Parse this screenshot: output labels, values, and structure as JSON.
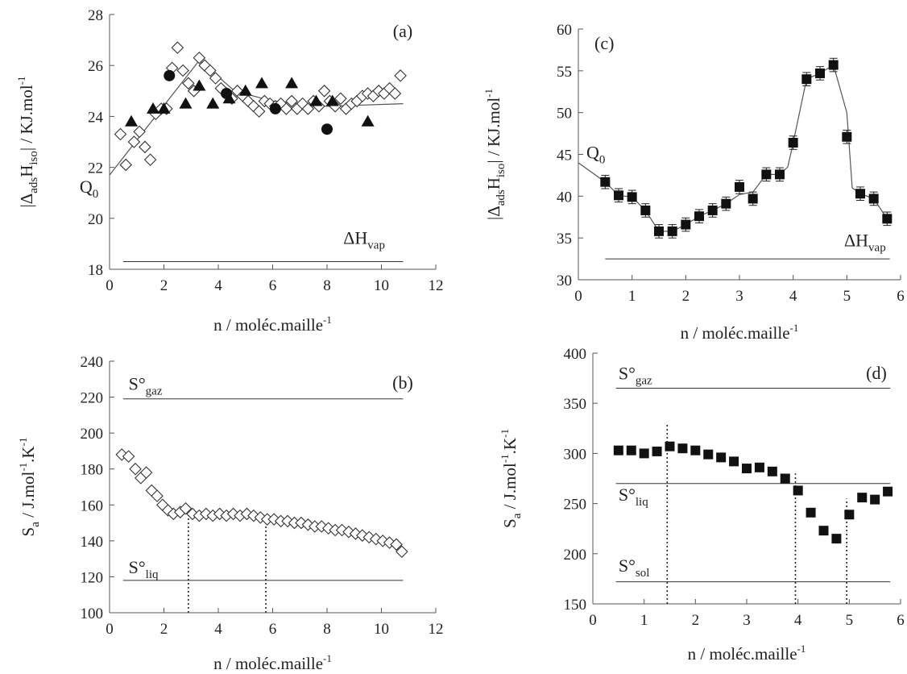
{
  "chart_data": [
    {
      "id": "a",
      "type": "scatter",
      "panel_label": "(a)",
      "xlabel": "n / moléc.maille",
      "xlabel_sup": "-1",
      "ylabel_parts": [
        "|Δ",
        "ads",
        "H",
        "iso",
        "| / KJ.mol",
        "-1"
      ],
      "xlim": [
        0,
        12
      ],
      "ylim": [
        18,
        28
      ],
      "xticks": [
        0,
        2,
        4,
        6,
        8,
        10,
        12
      ],
      "yticks": [
        18,
        20,
        22,
        24,
        26,
        28
      ],
      "annotations": [
        {
          "text": "Q",
          "sub": "0",
          "x": -1.1,
          "y": 21.0
        },
        {
          "text": "ΔH",
          "sub": "vap",
          "x": 8.6,
          "y": 19.0
        }
      ],
      "hlines": [
        {
          "y": 18.3,
          "x0": 0.5,
          "x1": 10.8
        }
      ],
      "vlines": [],
      "series": [
        {
          "marker": "diamond-open",
          "x": [
            0.4,
            0.6,
            0.9,
            1.1,
            1.3,
            1.5,
            1.7,
            1.9,
            2.1,
            2.3,
            2.5,
            2.7,
            2.9,
            3.1,
            3.3,
            3.5,
            3.7,
            3.9,
            4.1,
            4.3,
            4.5,
            4.7,
            4.9,
            5.1,
            5.3,
            5.5,
            5.7,
            5.9,
            6.1,
            6.3,
            6.5,
            6.7,
            6.9,
            7.1,
            7.3,
            7.5,
            7.7,
            7.9,
            8.1,
            8.3,
            8.5,
            8.7,
            8.9,
            9.1,
            9.3,
            9.5,
            9.7,
            9.9,
            10.1,
            10.3,
            10.5,
            10.7
          ],
          "y": [
            23.3,
            22.1,
            23.0,
            23.4,
            22.8,
            22.3,
            24.1,
            24.3,
            24.3,
            25.9,
            26.7,
            25.8,
            25.3,
            25.0,
            26.3,
            26.0,
            25.8,
            25.5,
            25.1,
            24.9,
            24.7,
            25.0,
            24.8,
            24.6,
            24.4,
            24.2,
            24.6,
            24.5,
            24.4,
            24.5,
            24.3,
            24.6,
            24.3,
            24.5,
            24.3,
            24.6,
            24.4,
            25.0,
            24.6,
            24.4,
            24.7,
            24.3,
            24.5,
            24.6,
            24.8,
            24.9,
            24.8,
            25.0,
            24.9,
            25.1,
            24.9,
            25.6
          ]
        },
        {
          "marker": "circle-filled",
          "x": [
            2.2,
            4.3,
            6.1,
            8.0
          ],
          "y": [
            25.6,
            24.9,
            24.3,
            23.5
          ]
        },
        {
          "marker": "triangle-filled",
          "x": [
            0.8,
            1.6,
            2.0,
            2.8,
            3.3,
            3.8,
            4.4,
            5.0,
            5.6,
            6.7,
            7.6,
            8.2,
            9.5
          ],
          "y": [
            23.8,
            24.3,
            24.3,
            24.5,
            25.2,
            24.5,
            24.7,
            25.0,
            25.3,
            25.3,
            24.6,
            24.6,
            23.8
          ]
        }
      ],
      "fit_lines": [
        {
          "x": [
            0,
            3.3,
            4.6,
            6.0,
            8.0,
            10.8
          ],
          "y": [
            21.7,
            26.2,
            25.0,
            24.6,
            24.4,
            24.5
          ]
        }
      ]
    },
    {
      "id": "b",
      "type": "scatter",
      "panel_label": "(b)",
      "xlabel": "n / moléc.maille",
      "xlabel_sup": "-1",
      "ylabel_parts": [
        "S",
        "a",
        " / J.mol",
        "-1",
        ".K",
        "-1"
      ],
      "xlim": [
        0,
        12
      ],
      "ylim": [
        100,
        240
      ],
      "xticks": [
        0,
        2,
        4,
        6,
        8,
        10,
        12
      ],
      "yticks": [
        100,
        120,
        140,
        160,
        180,
        200,
        220,
        240
      ],
      "annotations": [
        {
          "text": "S°",
          "sub": "gaz",
          "x": 0.7,
          "y": 224
        },
        {
          "text": "S°",
          "sub": "liq",
          "x": 0.7,
          "y": 122
        }
      ],
      "hlines": [
        {
          "y": 219,
          "x0": 0.5,
          "x1": 10.8
        },
        {
          "y": 118,
          "x0": 0.5,
          "x1": 10.8
        }
      ],
      "vlines": [
        {
          "x": 2.9,
          "y0": 100,
          "y1": 157
        },
        {
          "x": 5.75,
          "y0": 100,
          "y1": 152
        }
      ],
      "series": [
        {
          "marker": "diamond-open",
          "x": [
            0.45,
            0.7,
            0.95,
            1.15,
            1.35,
            1.55,
            1.75,
            1.95,
            2.15,
            2.35,
            2.6,
            2.8,
            3.05,
            3.3,
            3.55,
            3.8,
            4.05,
            4.3,
            4.55,
            4.8,
            5.05,
            5.3,
            5.55,
            5.8,
            6.05,
            6.3,
            6.55,
            6.8,
            7.05,
            7.3,
            7.55,
            7.8,
            8.05,
            8.3,
            8.55,
            8.8,
            9.05,
            9.3,
            9.55,
            9.8,
            10.05,
            10.3,
            10.55,
            10.75
          ],
          "y": [
            188,
            187,
            180,
            175,
            178,
            168,
            165,
            160,
            157,
            155,
            156,
            158,
            155,
            154,
            155,
            154,
            155,
            154,
            155,
            154,
            155,
            154,
            153,
            152,
            152,
            151,
            151,
            150,
            150,
            149,
            148,
            148,
            147,
            146,
            146,
            145,
            144,
            143,
            142,
            141,
            140,
            139,
            138,
            134
          ]
        }
      ],
      "fit_lines": []
    },
    {
      "id": "c",
      "type": "scatter",
      "panel_label": "(c)",
      "xlabel": "n / moléc.maille",
      "xlabel_sup": "-1",
      "ylabel_parts": [
        "|Δ",
        "ads",
        "H",
        "iso",
        "| / KJ.mol",
        "-1"
      ],
      "xlim": [
        0,
        6
      ],
      "ylim": [
        30,
        60
      ],
      "xticks": [
        0,
        1,
        2,
        3,
        4,
        5,
        6
      ],
      "yticks": [
        30,
        35,
        40,
        45,
        50,
        55,
        60
      ],
      "annotations": [
        {
          "text": "(c)",
          "x": 0.3,
          "y": 57.6
        },
        {
          "text": "Q",
          "sub": "0",
          "x": 0.15,
          "y": 44.5
        },
        {
          "text": "ΔH",
          "sub": "vap",
          "x": 4.95,
          "y": 34.0
        }
      ],
      "hlines": [
        {
          "y": 32.5,
          "x0": 0.5,
          "x1": 5.8
        }
      ],
      "vlines": [],
      "series": [
        {
          "marker": "square-filled-errorbar",
          "x": [
            0.5,
            0.75,
            1.0,
            1.25,
            1.5,
            1.75,
            2.0,
            2.25,
            2.5,
            2.75,
            3.0,
            3.25,
            3.5,
            3.75,
            4.0,
            4.25,
            4.5,
            4.75,
            5.0,
            5.25,
            5.5,
            5.75
          ],
          "y": [
            41.7,
            40.1,
            39.9,
            38.3,
            35.8,
            35.8,
            36.6,
            37.6,
            38.3,
            39.1,
            41.1,
            39.7,
            42.6,
            42.6,
            46.4,
            54.0,
            54.7,
            55.7,
            47.1,
            40.3,
            39.7,
            37.3
          ],
          "err": 0.8
        }
      ],
      "fit_lines": [
        {
          "x": [
            0,
            0.5,
            0.75,
            1.0,
            1.25,
            1.5,
            1.75,
            2.0,
            2.25,
            2.5,
            2.75,
            3.0,
            3.25,
            3.5,
            3.75,
            3.9,
            4.0,
            4.25,
            4.5,
            4.75,
            5.0,
            5.1,
            5.25,
            5.5,
            5.75
          ],
          "y": [
            44.0,
            41.7,
            40.1,
            39.9,
            38.3,
            35.8,
            35.8,
            36.6,
            37.6,
            38.3,
            39.1,
            40.2,
            40.5,
            42.6,
            42.6,
            43.5,
            46.4,
            54.0,
            54.7,
            55.7,
            50.0,
            41.0,
            40.3,
            39.7,
            37.3
          ]
        }
      ]
    },
    {
      "id": "d",
      "type": "scatter",
      "panel_label": "(d)",
      "xlabel": "n / moléc.maille",
      "xlabel_sup": "-1",
      "ylabel_parts": [
        "S",
        "a",
        " / J.mol",
        "-1",
        ".K",
        "-1"
      ],
      "xlim": [
        0,
        6
      ],
      "ylim": [
        150,
        400
      ],
      "xticks": [
        0,
        1,
        2,
        3,
        4,
        5,
        6
      ],
      "yticks": [
        150,
        200,
        250,
        300,
        350,
        400
      ],
      "annotations": [
        {
          "text": "S°",
          "sub": "gaz",
          "x": 0.5,
          "y": 374
        },
        {
          "text": "S°",
          "sub": "liq",
          "x": 0.5,
          "y": 253
        },
        {
          "text": "S°",
          "sub": "sol",
          "x": 0.5,
          "y": 182
        }
      ],
      "hlines": [
        {
          "y": 365,
          "x0": 0.45,
          "x1": 5.8
        },
        {
          "y": 270,
          "x0": 0.45,
          "x1": 5.8
        },
        {
          "y": 172,
          "x0": 0.45,
          "x1": 5.8
        }
      ],
      "vlines": [
        {
          "x": 1.45,
          "y0": 150,
          "y1": 330
        },
        {
          "x": 3.95,
          "y0": 150,
          "y1": 280
        },
        {
          "x": 4.95,
          "y0": 150,
          "y1": 255
        }
      ],
      "series": [
        {
          "marker": "square-filled",
          "x": [
            0.5,
            0.75,
            1.0,
            1.25,
            1.5,
            1.75,
            2.0,
            2.25,
            2.5,
            2.75,
            3.0,
            3.25,
            3.5,
            3.75,
            4.0,
            4.25,
            4.5,
            4.75,
            5.0,
            5.25,
            5.5,
            5.75
          ],
          "y": [
            303,
            303,
            300,
            302,
            307,
            305,
            303,
            299,
            296,
            292,
            285,
            286,
            282,
            275,
            263,
            241,
            223,
            215,
            239,
            256,
            254,
            262
          ]
        }
      ],
      "fit_lines": []
    }
  ]
}
